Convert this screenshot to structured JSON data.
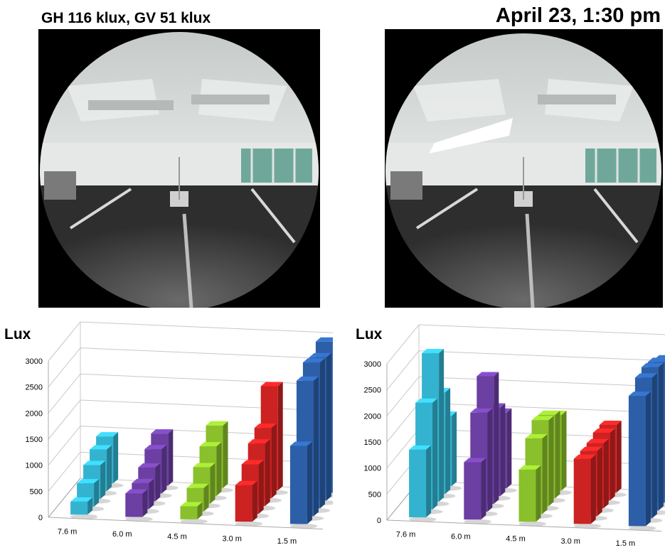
{
  "header": {
    "left_text": "GH 116 klux, GV 51 klux",
    "right_text": "April 23, 1:30 pm"
  },
  "colors": {
    "cyan": "#33b3cf",
    "purple": "#6c3fa3",
    "green": "#8ac02c",
    "red": "#cc2222",
    "blue": "#2c5fa8"
  },
  "chart_data": [
    {
      "type": "bar",
      "title": "",
      "ylabel": "Lux",
      "xlabel": "",
      "ylim": [
        0,
        3000
      ],
      "yticks": [
        "0",
        "500",
        "1000",
        "1500",
        "2000",
        "2500",
        "3000"
      ],
      "grid": true,
      "categories": [
        "7.6 m",
        "6.0 m",
        "4.5 m",
        "3.0 m",
        "1.5 m"
      ],
      "series": [
        {
          "values": [
            250,
            450,
            250,
            700,
            1500
          ]
        },
        {
          "values": [
            450,
            500,
            450,
            950,
            2600
          ]
        },
        {
          "values": [
            650,
            650,
            700,
            1200,
            2800
          ]
        },
        {
          "values": [
            800,
            850,
            950,
            1350,
            2750
          ]
        },
        {
          "values": [
            900,
            1000,
            1200,
            2000,
            2900
          ]
        }
      ]
    },
    {
      "type": "bar",
      "title": "",
      "ylabel": "Lux",
      "xlabel": "",
      "ylim": [
        0,
        3000
      ],
      "yticks": [
        "0",
        "500",
        "1000",
        "1500",
        "2000",
        "2500",
        "3000"
      ],
      "grid": true,
      "categories": [
        "7.6 m",
        "6.0 m",
        "4.5 m",
        "3.0 m",
        "1.5 m"
      ],
      "series": [
        {
          "values": [
            1300,
            1100,
            1000,
            1250,
            2500
          ]
        },
        {
          "values": [
            2050,
            1900,
            1450,
            1250,
            2700
          ]
        },
        {
          "values": [
            2850,
            2450,
            1650,
            1250,
            2750
          ]
        },
        {
          "values": [
            1950,
            1700,
            1600,
            1300,
            2700
          ]
        },
        {
          "values": [
            1350,
            1450,
            1450,
            1300,
            2600
          ]
        }
      ]
    }
  ]
}
